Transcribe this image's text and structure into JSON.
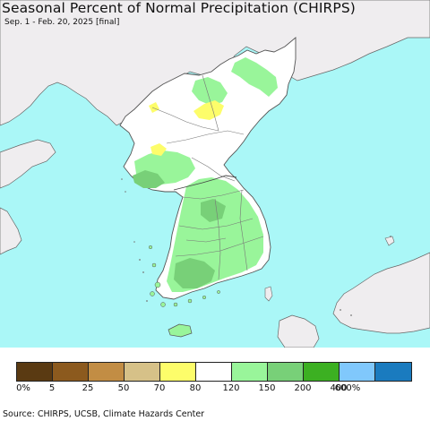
{
  "title": "Seasonal Percent of Normal Precipitation (CHIRPS)",
  "subtitle": "Sep. 1 - Feb. 20, 2025 [final]",
  "legend": {
    "colors": [
      "#5a3a12",
      "#8c5a1e",
      "#c28d44",
      "#d6c188",
      "#fdfd6a",
      "#ffffff",
      "#99f59a",
      "#78d078",
      "#3cb022",
      "#80c8fc",
      "#1a7bbf"
    ],
    "ticks": [
      "0%",
      "5",
      "25",
      "50",
      "70",
      "80",
      "120",
      "150",
      "200",
      "400",
      "600%"
    ]
  },
  "source": "Source: CHIRPS, UCSB, Climate Hazards Center",
  "map_colors": {
    "sea": "#aaf7f7",
    "outside_land": "#efedef",
    "normal": "#ffffff",
    "wet": "#99f59a",
    "wetter": "#78d078",
    "dry": "#fdfd6a",
    "border": "#666666"
  }
}
